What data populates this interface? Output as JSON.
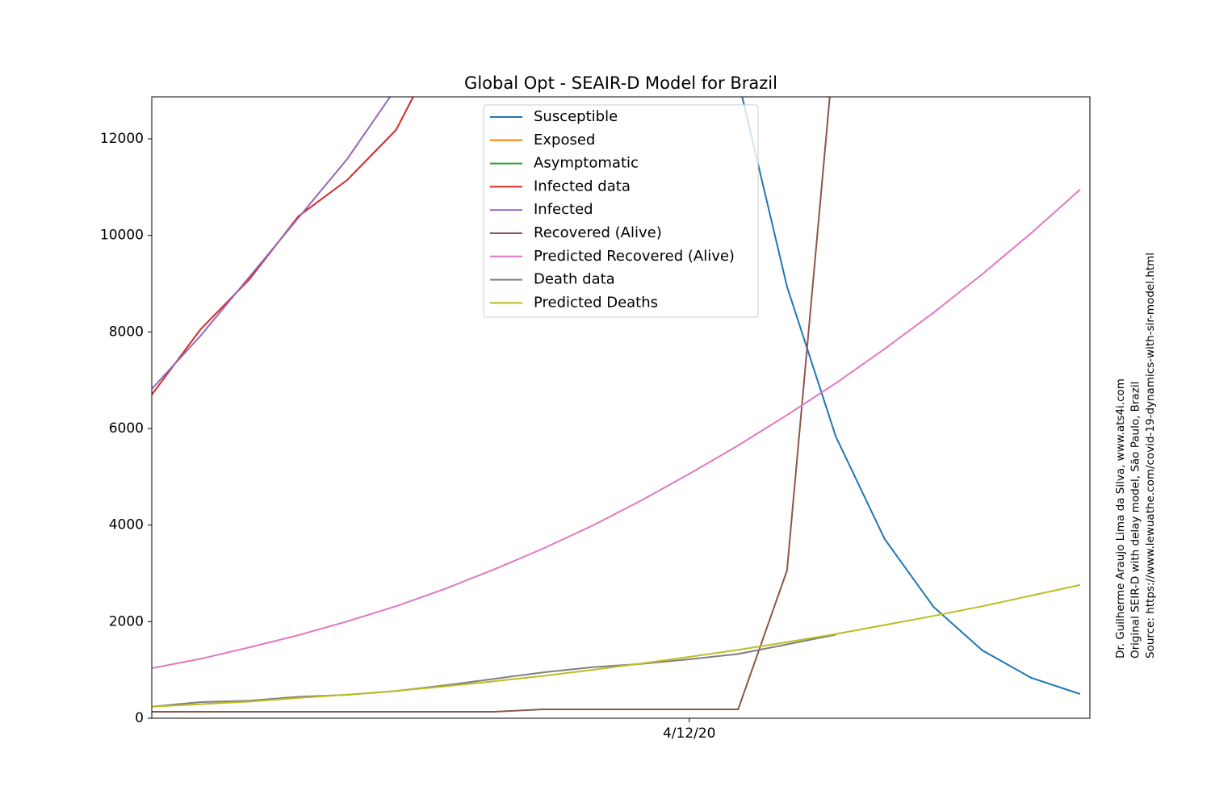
{
  "chart_data": {
    "type": "line",
    "title": "Global Opt - SEAIR-D Model for Brazil",
    "categories": [
      null,
      null,
      null,
      null,
      null,
      null,
      null,
      null,
      null,
      null,
      null,
      "4/12/20",
      null,
      null,
      null,
      null,
      null,
      null,
      null,
      null
    ],
    "xlim": [
      0,
      19.2
    ],
    "ylim": [
      0,
      12870
    ],
    "yticks": [
      0,
      2000,
      4000,
      6000,
      8000,
      10000,
      12000
    ],
    "legend": "upper center",
    "series": [
      {
        "name": "Susceptible",
        "color": "#1f77b4",
        "values": [
          null,
          null,
          null,
          null,
          null,
          null,
          null,
          null,
          null,
          null,
          null,
          null,
          13226,
          8942,
          5833,
          3710,
          2306,
          1404,
          836,
          501
        ]
      },
      {
        "name": "Exposed",
        "color": "#ff7f0e",
        "values": [
          null,
          null,
          null,
          null,
          null,
          null,
          null,
          null,
          null,
          null,
          null,
          null,
          null,
          null,
          null,
          null,
          null,
          null,
          null,
          null
        ]
      },
      {
        "name": "Asymptomatic",
        "color": "#2ca02c",
        "values": [
          null,
          null,
          null,
          null,
          null,
          null,
          null,
          null,
          null,
          null,
          null,
          null,
          null,
          null,
          null,
          null,
          null,
          null,
          null,
          null
        ]
      },
      {
        "name": "Infected data",
        "color": "#d62728",
        "values": [
          6702,
          8056,
          9092,
          10396,
          11148,
          12184,
          14140,
          null,
          null,
          null,
          null,
          null,
          null,
          null,
          null,
          null,
          null,
          null,
          null,
          null
        ]
      },
      {
        "name": "Infected",
        "color": "#9467bd",
        "values": [
          6820,
          7922,
          9143,
          10363,
          11583,
          13050,
          14400,
          null,
          null,
          null,
          null,
          null,
          null,
          null,
          null,
          null,
          null,
          null,
          null,
          null
        ]
      },
      {
        "name": "Recovered (Alive)",
        "color": "#8c564b",
        "values": [
          134,
          134,
          134,
          134,
          134,
          134,
          134,
          134,
          184,
          184,
          184,
          184,
          184,
          3059,
          14260,
          null,
          null,
          null,
          null,
          null
        ]
      },
      {
        "name": "Predicted Recovered (Alive)",
        "color": "#e377c2",
        "values": [
          1036,
          1230,
          1470,
          1720,
          2006,
          2320,
          2680,
          3080,
          3510,
          3980,
          4500,
          5060,
          5650,
          6280,
          6940,
          7650,
          8400,
          9200,
          10050,
          10950
        ]
      },
      {
        "name": "Death data",
        "color": "#7f7f7f",
        "values": [
          240,
          335,
          365,
          445,
          485,
          565,
          680,
          815,
          950,
          1055,
          1125,
          1220,
          1330,
          1530,
          1730,
          null,
          null,
          null,
          null,
          null
        ]
      },
      {
        "name": "Predicted Deaths",
        "color": "#bcbd22",
        "values": [
          240,
          290,
          345,
          420,
          490,
          565,
          660,
          765,
          875,
          1000,
          1130,
          1270,
          1415,
          1575,
          1745,
          1930,
          2120,
          2320,
          2540,
          2760
        ]
      }
    ],
    "notes": [
      "Dr. Guilherme Araujo Lima da Silva, www.ats4i.com",
      "Original SEIR-D with delay model, São Paulo, Brazil",
      "Source: https://www.lewuathe.com/covid-19-dynamics-with-sir-model.html"
    ]
  }
}
